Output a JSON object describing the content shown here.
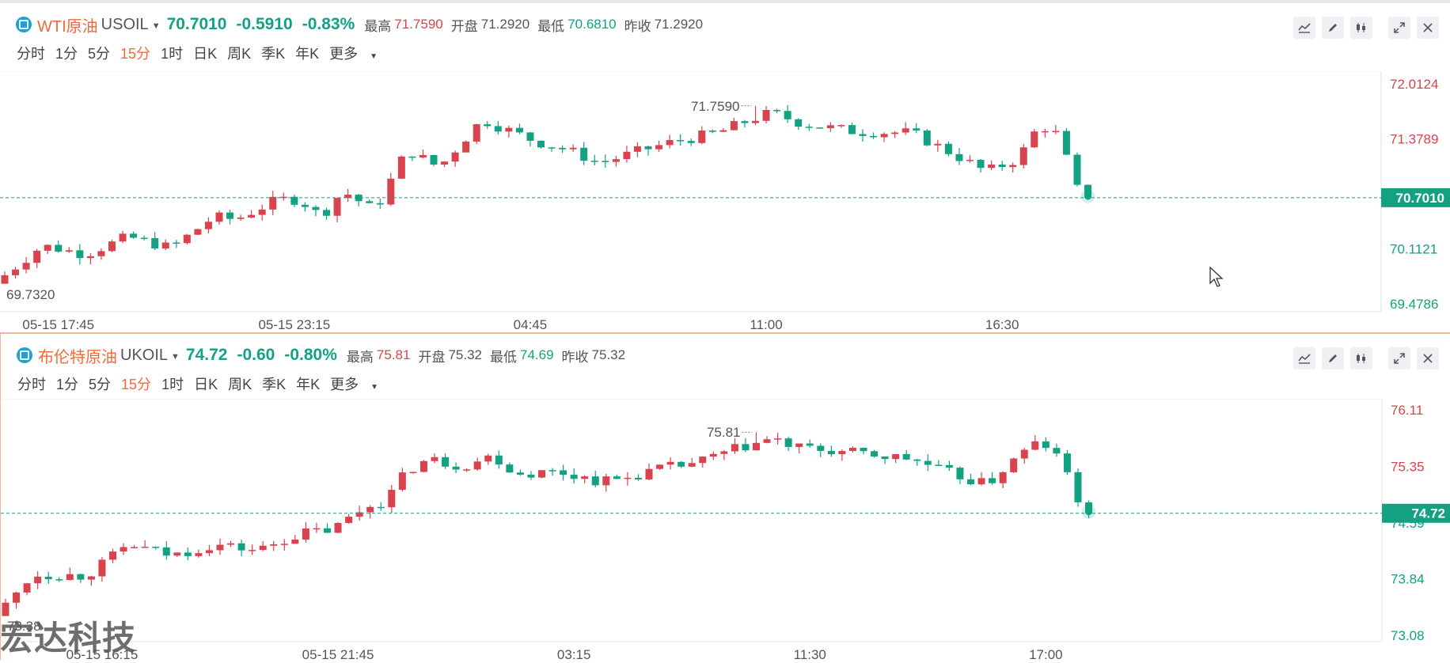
{
  "panels": [
    {
      "name": "WTI原油",
      "symbol": "USOIL",
      "price": "70.7010",
      "change": "-0.5910",
      "change_pct": "-0.83%",
      "stats": {
        "high_label": "最高",
        "high": "71.7590",
        "open_label": "开盘",
        "open": "71.2920",
        "low_label": "最低",
        "low": "70.6810",
        "prev_label": "昨收",
        "prev": "71.2920"
      },
      "timeframes": [
        "分时",
        "1分",
        "5分",
        "15分",
        "1时",
        "日K",
        "周K",
        "季K",
        "年K"
      ],
      "more_label": "更多",
      "active_timeframe": "15分"
    },
    {
      "name": "布伦特原油",
      "symbol": "UKOIL",
      "price": "74.72",
      "change": "-0.60",
      "change_pct": "-0.80%",
      "stats": {
        "high_label": "最高",
        "high": "75.81",
        "open_label": "开盘",
        "open": "75.32",
        "low_label": "最低",
        "low": "74.69",
        "prev_label": "昨收",
        "prev": "75.32"
      },
      "timeframes": [
        "分时",
        "1分",
        "5分",
        "15分",
        "1时",
        "日K",
        "周K",
        "季K",
        "年K"
      ],
      "more_label": "更多",
      "active_timeframe": "15分"
    }
  ],
  "toolbar_icons": [
    "indicator-icon",
    "draw-icon",
    "candle-type-icon",
    "fullscreen-icon",
    "close-icon"
  ],
  "watermark": "宏达科技",
  "colors": {
    "up": "#d9434d",
    "down": "#12a182",
    "accent": "#f06a3a",
    "grid": "#e6e6e6"
  },
  "chart_data": [
    {
      "type": "candlestick",
      "symbol": "USOIL",
      "y_ticks": [
        "72.0124",
        "71.3789",
        "70.1121",
        "69.4786"
      ],
      "y_tick_values": [
        72.0124,
        71.3789,
        70.1121,
        69.4786
      ],
      "ylim": [
        69.4786,
        72.0124
      ],
      "current_price_label": "70.7010",
      "current_price": 70.701,
      "x_ticks": [
        "05-15 17:45",
        "05-15 23:15",
        "04:45",
        "11:00",
        "16:30"
      ],
      "x_tick_index": [
        5,
        27,
        49,
        71,
        93
      ],
      "high_marker": "71.7590",
      "high_marker_value": 71.759,
      "high_marker_index": 70,
      "low_marker": "69.7320",
      "low_marker_value": 69.732,
      "low_marker_index": 0,
      "anchors": [
        [
          0,
          69.76
        ],
        [
          4,
          70.15
        ],
        [
          8,
          70.05
        ],
        [
          12,
          70.25
        ],
        [
          16,
          70.12
        ],
        [
          20,
          70.48
        ],
        [
          22,
          70.45
        ],
        [
          26,
          70.68
        ],
        [
          28,
          70.68
        ],
        [
          30,
          70.48
        ],
        [
          32,
          70.78
        ],
        [
          35,
          70.55
        ],
        [
          38,
          71.25
        ],
        [
          41,
          71.05
        ],
        [
          45,
          71.6
        ],
        [
          47,
          71.5
        ],
        [
          50,
          71.35
        ],
        [
          53,
          71.25
        ],
        [
          56,
          71.1
        ],
        [
          60,
          71.25
        ],
        [
          63,
          71.35
        ],
        [
          67,
          71.45
        ],
        [
          70,
          71.6
        ],
        [
          72,
          71.68
        ],
        [
          75,
          71.55
        ],
        [
          80,
          71.46
        ],
        [
          85,
          71.45
        ],
        [
          89,
          71.2
        ],
        [
          92,
          71.0
        ],
        [
          95,
          71.15
        ],
        [
          97,
          71.55
        ],
        [
          99,
          71.4
        ],
        [
          100,
          70.9
        ],
        [
          101,
          70.7
        ]
      ]
    },
    {
      "type": "candlestick",
      "symbol": "UKOIL",
      "y_ticks": [
        "76.11",
        "75.35",
        "74.59",
        "73.84",
        "73.08"
      ],
      "y_tick_values": [
        76.11,
        75.35,
        74.59,
        73.84,
        73.08
      ],
      "ylim": [
        73.08,
        76.11
      ],
      "current_price_label": "74.72",
      "current_price": 74.72,
      "x_ticks": [
        "05-15 16:15",
        "05-15 21:45",
        "03:15",
        "11:30",
        "17:00"
      ],
      "x_tick_index": [
        9,
        31,
        53,
        75,
        97
      ],
      "high_marker": "75.81",
      "high_marker_value": 75.81,
      "high_marker_index": 70,
      "low_marker": "73.38",
      "low_marker_value": 73.38,
      "low_marker_index": 0,
      "anchors": [
        [
          0,
          73.4
        ],
        [
          3,
          73.9
        ],
        [
          8,
          73.88
        ],
        [
          12,
          74.3
        ],
        [
          16,
          74.15
        ],
        [
          20,
          74.3
        ],
        [
          24,
          74.22
        ],
        [
          28,
          74.45
        ],
        [
          31,
          74.5
        ],
        [
          34,
          74.8
        ],
        [
          36,
          74.9
        ],
        [
          38,
          75.3
        ],
        [
          40,
          75.45
        ],
        [
          43,
          75.35
        ],
        [
          46,
          75.5
        ],
        [
          48,
          75.25
        ],
        [
          52,
          75.28
        ],
        [
          56,
          75.15
        ],
        [
          58,
          75.18
        ],
        [
          61,
          75.3
        ],
        [
          65,
          75.4
        ],
        [
          69,
          75.6
        ],
        [
          72,
          75.72
        ],
        [
          74,
          75.6
        ],
        [
          80,
          75.52
        ],
        [
          85,
          75.45
        ],
        [
          88,
          75.28
        ],
        [
          92,
          75.1
        ],
        [
          95,
          75.5
        ],
        [
          97,
          75.7
        ],
        [
          99,
          75.4
        ],
        [
          100,
          75.1
        ],
        [
          101,
          74.72
        ]
      ]
    }
  ]
}
